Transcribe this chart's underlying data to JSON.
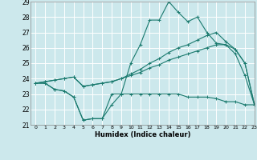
{
  "xlabel": "Humidex (Indice chaleur)",
  "xlim": [
    -0.5,
    23
  ],
  "ylim": [
    21,
    29
  ],
  "xticks": [
    0,
    1,
    2,
    3,
    4,
    5,
    6,
    7,
    8,
    9,
    10,
    11,
    12,
    13,
    14,
    15,
    16,
    17,
    18,
    19,
    20,
    21,
    22,
    23
  ],
  "yticks": [
    21,
    22,
    23,
    24,
    25,
    26,
    27,
    28,
    29
  ],
  "bg_color": "#cce8ec",
  "line_color": "#1a7a6e",
  "grid_color": "#ffffff",
  "series": {
    "line1": [
      23.7,
      23.7,
      23.3,
      23.2,
      22.8,
      21.3,
      21.4,
      21.4,
      22.3,
      23.0,
      25.0,
      26.2,
      27.8,
      27.8,
      29.0,
      28.3,
      27.7,
      28.0,
      27.0,
      26.3,
      26.2,
      25.6,
      24.2,
      22.3
    ],
    "line2": [
      23.7,
      23.7,
      23.3,
      23.2,
      22.8,
      21.3,
      21.4,
      21.4,
      23.0,
      23.0,
      23.0,
      23.0,
      23.0,
      23.0,
      23.0,
      23.0,
      22.8,
      22.8,
      22.8,
      22.7,
      22.5,
      22.5,
      22.3,
      22.3
    ],
    "line3": [
      23.7,
      23.8,
      23.9,
      24.0,
      24.1,
      23.5,
      23.6,
      23.7,
      23.8,
      24.0,
      24.3,
      24.6,
      25.0,
      25.3,
      25.7,
      26.0,
      26.2,
      26.5,
      26.8,
      27.0,
      26.4,
      25.9,
      25.0,
      22.3
    ],
    "line4": [
      23.7,
      23.8,
      23.9,
      24.0,
      24.1,
      23.5,
      23.6,
      23.7,
      23.8,
      24.0,
      24.2,
      24.4,
      24.7,
      24.9,
      25.2,
      25.4,
      25.6,
      25.8,
      26.0,
      26.2,
      26.2,
      25.9,
      25.0,
      22.3
    ]
  }
}
